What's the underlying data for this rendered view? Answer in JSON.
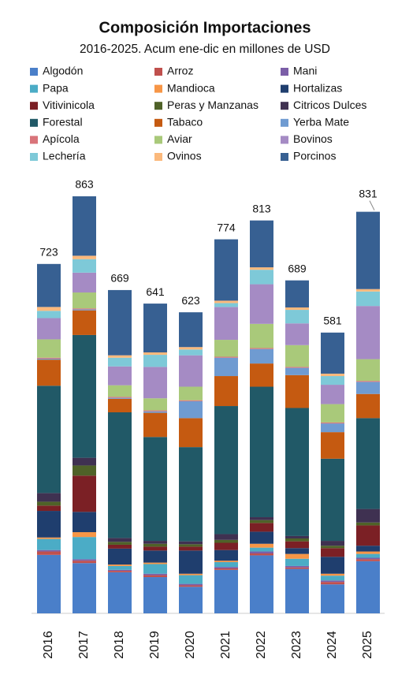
{
  "chart_data": {
    "type": "stacked_bar",
    "title": "Composición Importaciones",
    "subtitle": "2016-2025. Acum ene-dic en millones de USD",
    "categories": [
      "2016",
      "2017",
      "2018",
      "2019",
      "2020",
      "2021",
      "2022",
      "2023",
      "2024",
      "2025"
    ],
    "totals": [
      723,
      863,
      669,
      641,
      623,
      774,
      813,
      689,
      581,
      831
    ],
    "series": [
      {
        "name": "Algodón",
        "color": "#4a7fc9",
        "values": [
          121,
          104,
          85,
          75,
          55,
          90,
          120,
          92,
          60,
          108
        ]
      },
      {
        "name": "Arroz",
        "color": "#c0504d",
        "values": [
          7,
          5,
          3,
          4,
          3,
          3,
          4,
          3,
          5,
          4
        ]
      },
      {
        "name": "Mani",
        "color": "#7b5ea7",
        "values": [
          3,
          3,
          2,
          3,
          3,
          3,
          4,
          3,
          3,
          3
        ]
      },
      {
        "name": "Papa",
        "color": "#4bacc6",
        "values": [
          23,
          46,
          8,
          20,
          18,
          10,
          8,
          15,
          10,
          8
        ]
      },
      {
        "name": "Mandioca",
        "color": "#f79646",
        "values": [
          3,
          10,
          3,
          3,
          3,
          3,
          8,
          10,
          4,
          5
        ]
      },
      {
        "name": "Hortalizas",
        "color": "#1f3e6e",
        "values": [
          55,
          42,
          33,
          25,
          48,
          22,
          25,
          12,
          35,
          12
        ]
      },
      {
        "name": "Vitivinicola",
        "color": "#7b2025",
        "values": [
          11,
          75,
          8,
          8,
          8,
          15,
          18,
          14,
          18,
          42
        ]
      },
      {
        "name": "Peras y Manzanas",
        "color": "#4f6228",
        "values": [
          8,
          21,
          6,
          6,
          5,
          6,
          6,
          6,
          5,
          6
        ]
      },
      {
        "name": "Citricos Dulces",
        "color": "#3f3151",
        "values": [
          18,
          16,
          8,
          6,
          6,
          12,
          6,
          5,
          10,
          28
        ]
      },
      {
        "name": "Forestal",
        "color": "#215967",
        "values": [
          222,
          254,
          260,
          215,
          195,
          265,
          270,
          265,
          170,
          188
        ]
      },
      {
        "name": "Tabaco",
        "color": "#c55a11",
        "values": [
          54,
          51,
          28,
          50,
          60,
          62,
          48,
          68,
          55,
          50
        ]
      },
      {
        "name": "Yerba Mate",
        "color": "#6f9bd1",
        "values": [
          2,
          2,
          2,
          3,
          35,
          38,
          30,
          15,
          18,
          25
        ]
      },
      {
        "name": "Apícola",
        "color": "#d9747a",
        "values": [
          2,
          2,
          2,
          2,
          2,
          2,
          2,
          2,
          2,
          2
        ]
      },
      {
        "name": "Aviar",
        "color": "#a9c97a",
        "values": [
          38,
          33,
          24,
          25,
          28,
          35,
          50,
          45,
          38,
          45
        ]
      },
      {
        "name": "Bovinos",
        "color": "#a58bc4",
        "values": [
          44,
          41,
          39,
          65,
          65,
          68,
          82,
          45,
          40,
          110
        ]
      },
      {
        "name": "Lechería",
        "color": "#7ec9d8",
        "values": [
          15,
          28,
          18,
          25,
          12,
          8,
          30,
          28,
          18,
          30
        ]
      },
      {
        "name": "Ovinos",
        "color": "#fbb97c",
        "values": [
          8,
          7,
          5,
          5,
          5,
          5,
          5,
          5,
          5,
          5
        ]
      },
      {
        "name": "Porcinos",
        "color": "#376092",
        "values": [
          89,
          123,
          135,
          101,
          72,
          127,
          97,
          56,
          85,
          160
        ]
      }
    ]
  }
}
